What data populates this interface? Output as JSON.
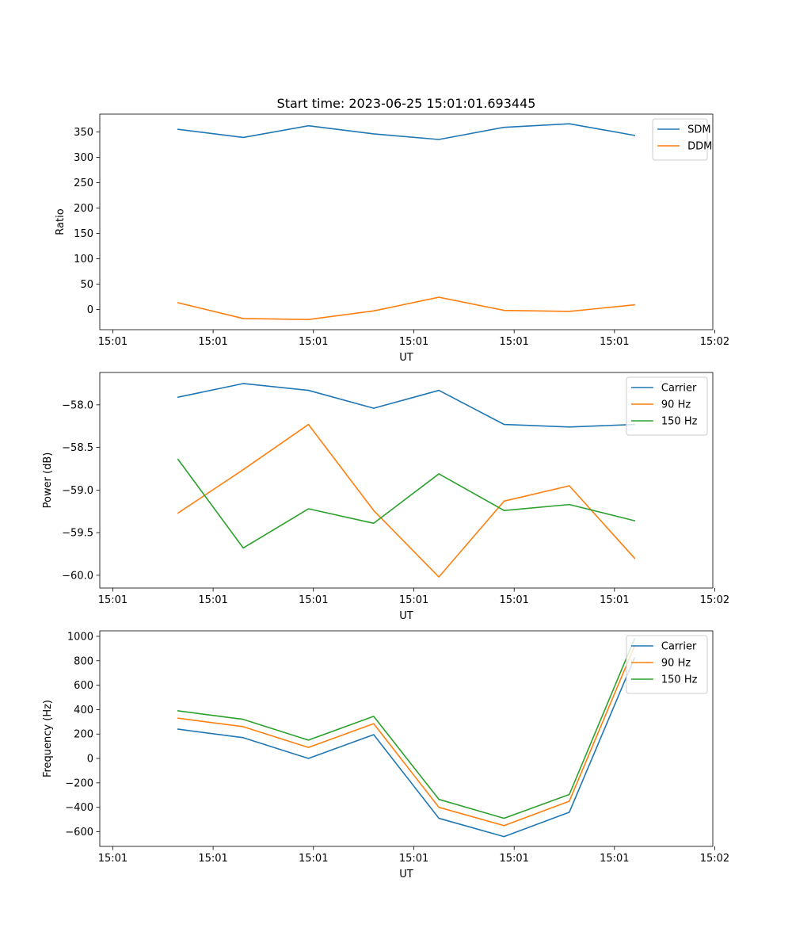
{
  "title": "Start time: 2023-06-25 15:01:01.693445",
  "colors": {
    "blue": "#1f77b4",
    "orange": "#ff7f0e",
    "green": "#2ca02c"
  },
  "chart_data": [
    {
      "type": "line",
      "title": "Start time: 2023-06-25 15:01:01.693445",
      "xlabel": "UT",
      "ylabel": "Ratio",
      "x": [
        0.5,
        1.0,
        1.5,
        2.0,
        2.5,
        3.0,
        3.5,
        4.0
      ],
      "xlim": [
        -0.1,
        4.6
      ],
      "xticks": [
        0,
        0.769,
        1.538,
        2.308,
        3.077,
        3.846,
        4.615
      ],
      "xtick_labels": [
        "15:01",
        "15:01",
        "15:01",
        "15:01",
        "15:01",
        "15:01",
        "15:02"
      ],
      "ylim": [
        -40,
        385
      ],
      "yticks": [
        0,
        50,
        100,
        150,
        200,
        250,
        300,
        350
      ],
      "ytick_labels": [
        "0",
        "50",
        "100",
        "150",
        "200",
        "250",
        "300",
        "350"
      ],
      "legend": "top-right",
      "series": [
        {
          "name": "SDM",
          "color": "#1f77b4",
          "values": [
            355,
            339,
            362,
            346,
            335,
            359,
            366,
            343
          ]
        },
        {
          "name": "DDM",
          "color": "#ff7f0e",
          "values": [
            13,
            -18,
            -20,
            -3,
            24,
            -2,
            -4,
            9
          ]
        }
      ]
    },
    {
      "type": "line",
      "xlabel": "UT",
      "ylabel": "Power (dB)",
      "x": [
        0.5,
        1.0,
        1.5,
        2.0,
        2.5,
        3.0,
        3.5,
        4.0
      ],
      "xlim": [
        -0.1,
        4.6
      ],
      "xticks": [
        0,
        0.769,
        1.538,
        2.308,
        3.077,
        3.846,
        4.615
      ],
      "xtick_labels": [
        "15:01",
        "15:01",
        "15:01",
        "15:01",
        "15:01",
        "15:01",
        "15:02"
      ],
      "ylim": [
        -60.15,
        -57.62
      ],
      "yticks": [
        -60.0,
        -59.5,
        -59.0,
        -58.5,
        -58.0
      ],
      "ytick_labels": [
        "−60.0",
        "−59.5",
        "−59.0",
        "−58.5",
        "−58.0"
      ],
      "legend": "top-right",
      "series": [
        {
          "name": "Carrier",
          "color": "#1f77b4",
          "values": [
            -57.91,
            -57.75,
            -57.83,
            -58.04,
            -57.83,
            -58.23,
            -58.26,
            -58.23
          ]
        },
        {
          "name": "90 Hz",
          "color": "#ff7f0e",
          "values": [
            -59.27,
            -58.76,
            -58.23,
            -59.24,
            -60.02,
            -59.13,
            -58.95,
            -59.8
          ]
        },
        {
          "name": "150 Hz",
          "color": "#2ca02c",
          "values": [
            -58.64,
            -59.68,
            -59.22,
            -59.39,
            -58.81,
            -59.24,
            -59.17,
            -59.36
          ]
        }
      ]
    },
    {
      "type": "line",
      "xlabel": "UT",
      "ylabel": "Frequency (Hz)",
      "x": [
        0.5,
        1.0,
        1.5,
        2.0,
        2.5,
        3.0,
        3.5,
        4.0
      ],
      "xlim": [
        -0.1,
        4.6
      ],
      "xticks": [
        0,
        0.769,
        1.538,
        2.308,
        3.077,
        3.846,
        4.615
      ],
      "xtick_labels": [
        "15:01",
        "15:01",
        "15:01",
        "15:01",
        "15:01",
        "15:01",
        "15:02"
      ],
      "ylim": [
        -720,
        1045
      ],
      "yticks": [
        -600,
        -400,
        -200,
        0,
        200,
        400,
        600,
        800,
        1000
      ],
      "ytick_labels": [
        "−600",
        "−400",
        "−200",
        "0",
        "200",
        "400",
        "600",
        "800",
        "1000"
      ],
      "legend": "top-right",
      "series": [
        {
          "name": "Carrier",
          "color": "#1f77b4",
          "values": [
            240,
            170,
            0,
            195,
            -490,
            -640,
            -440,
            825
          ]
        },
        {
          "name": "90 Hz",
          "color": "#ff7f0e",
          "values": [
            330,
            260,
            90,
            285,
            -400,
            -550,
            -350,
            920
          ]
        },
        {
          "name": "150 Hz",
          "color": "#2ca02c",
          "values": [
            390,
            320,
            150,
            345,
            -335,
            -490,
            -295,
            980
          ]
        }
      ]
    }
  ]
}
